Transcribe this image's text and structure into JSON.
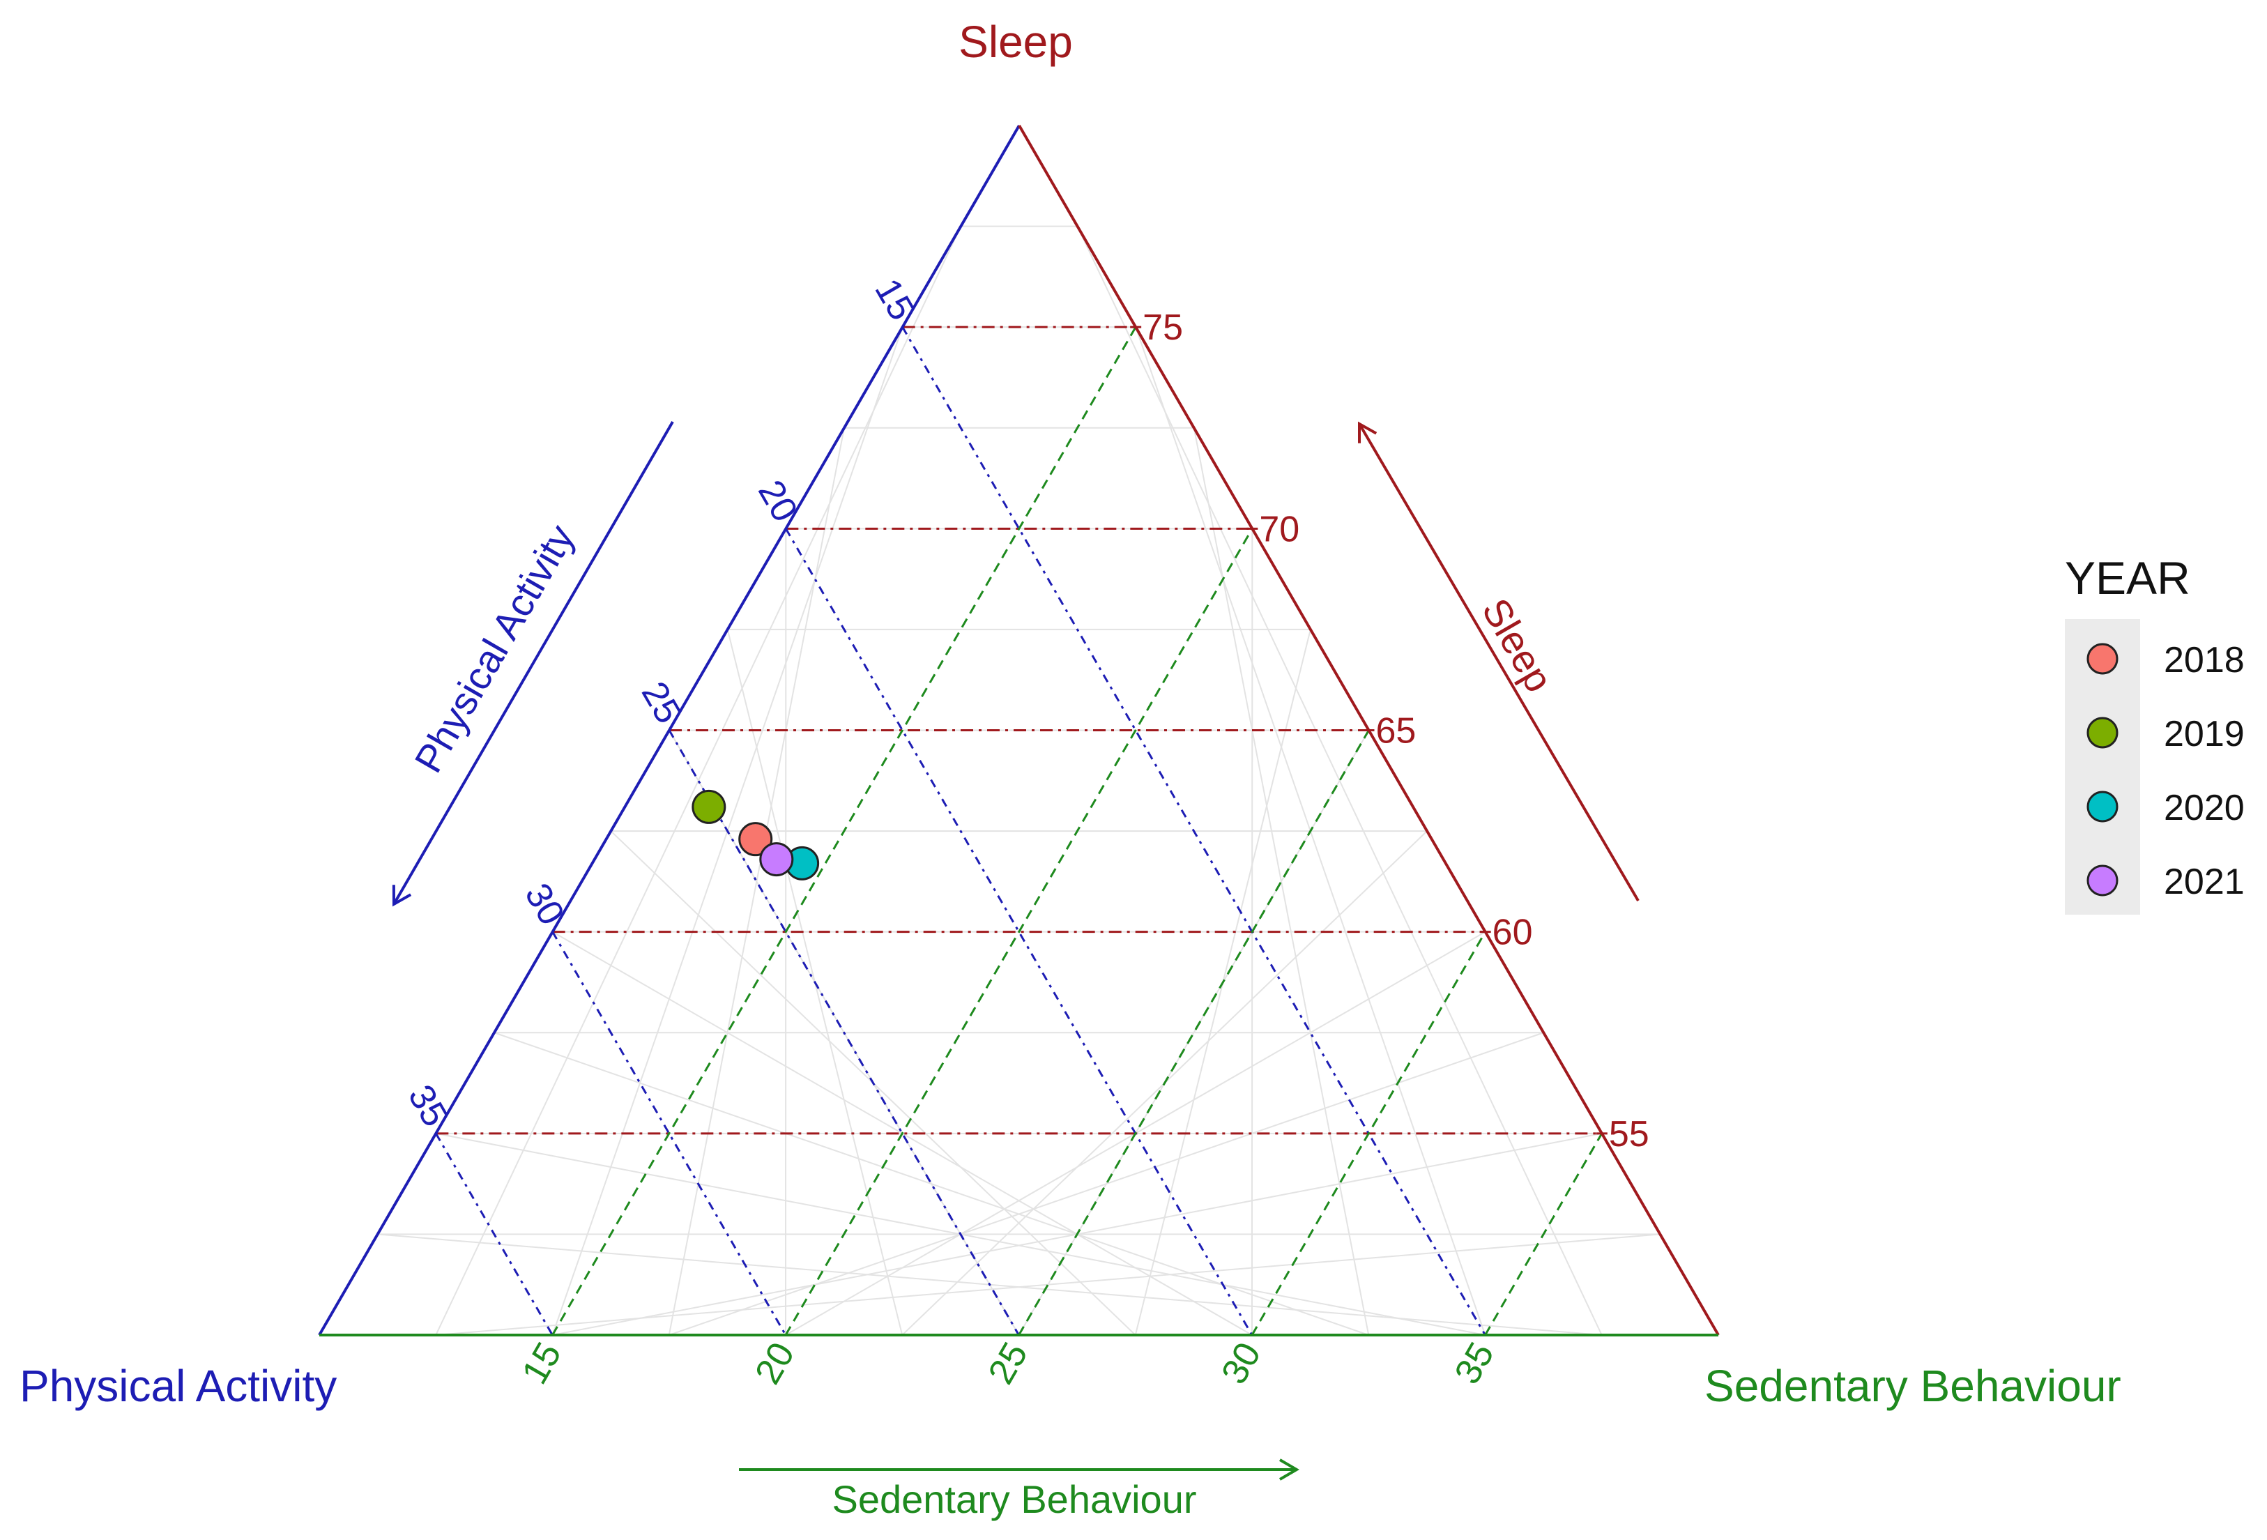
{
  "chart_data": {
    "type": "scatter",
    "subtype": "ternary",
    "vertices": {
      "top": "Sleep",
      "left": "Physical Activity",
      "right": "Sedentary Behaviour"
    },
    "axes": {
      "sleep": {
        "title": "Sleep",
        "ticks": [
          55,
          60,
          65,
          70,
          75
        ],
        "tick_labels": [
          "55",
          "60",
          "65",
          "70",
          "75"
        ],
        "range": [
          50,
          80
        ],
        "color": "#a0191d"
      },
      "physical_activity": {
        "title": "Physical Activity",
        "ticks": [
          15,
          20,
          25,
          30,
          35
        ],
        "tick_labels": [
          "15",
          "20",
          "25",
          "30",
          "35"
        ],
        "range": [
          10,
          40
        ],
        "color": "#1d1db4"
      },
      "sedentary": {
        "title": "Sedentary Behaviour",
        "ticks": [
          15,
          20,
          25,
          30,
          35
        ],
        "tick_labels": [
          "15",
          "20",
          "25",
          "30",
          "35"
        ],
        "range": [
          10,
          40
        ],
        "color": "#1e8a1e"
      }
    },
    "grid": true,
    "legend": {
      "title": "YEAR",
      "position": "right"
    },
    "series": [
      {
        "name": "2018",
        "color": "#f8766d",
        "points": [
          {
            "sleep": 62.3,
            "physical_activity": 24.5,
            "sedentary": 13.2
          }
        ]
      },
      {
        "name": "2019",
        "color": "#7cae00",
        "points": [
          {
            "sleep": 63.1,
            "physical_activity": 25.1,
            "sedentary": 11.8
          }
        ]
      },
      {
        "name": "2020",
        "color": "#00bfc4",
        "points": [
          {
            "sleep": 61.7,
            "physical_activity": 23.8,
            "sedentary": 14.5
          }
        ]
      },
      {
        "name": "2021",
        "color": "#c77cff",
        "points": [
          {
            "sleep": 61.8,
            "physical_activity": 24.3,
            "sedentary": 13.9
          }
        ]
      }
    ]
  }
}
